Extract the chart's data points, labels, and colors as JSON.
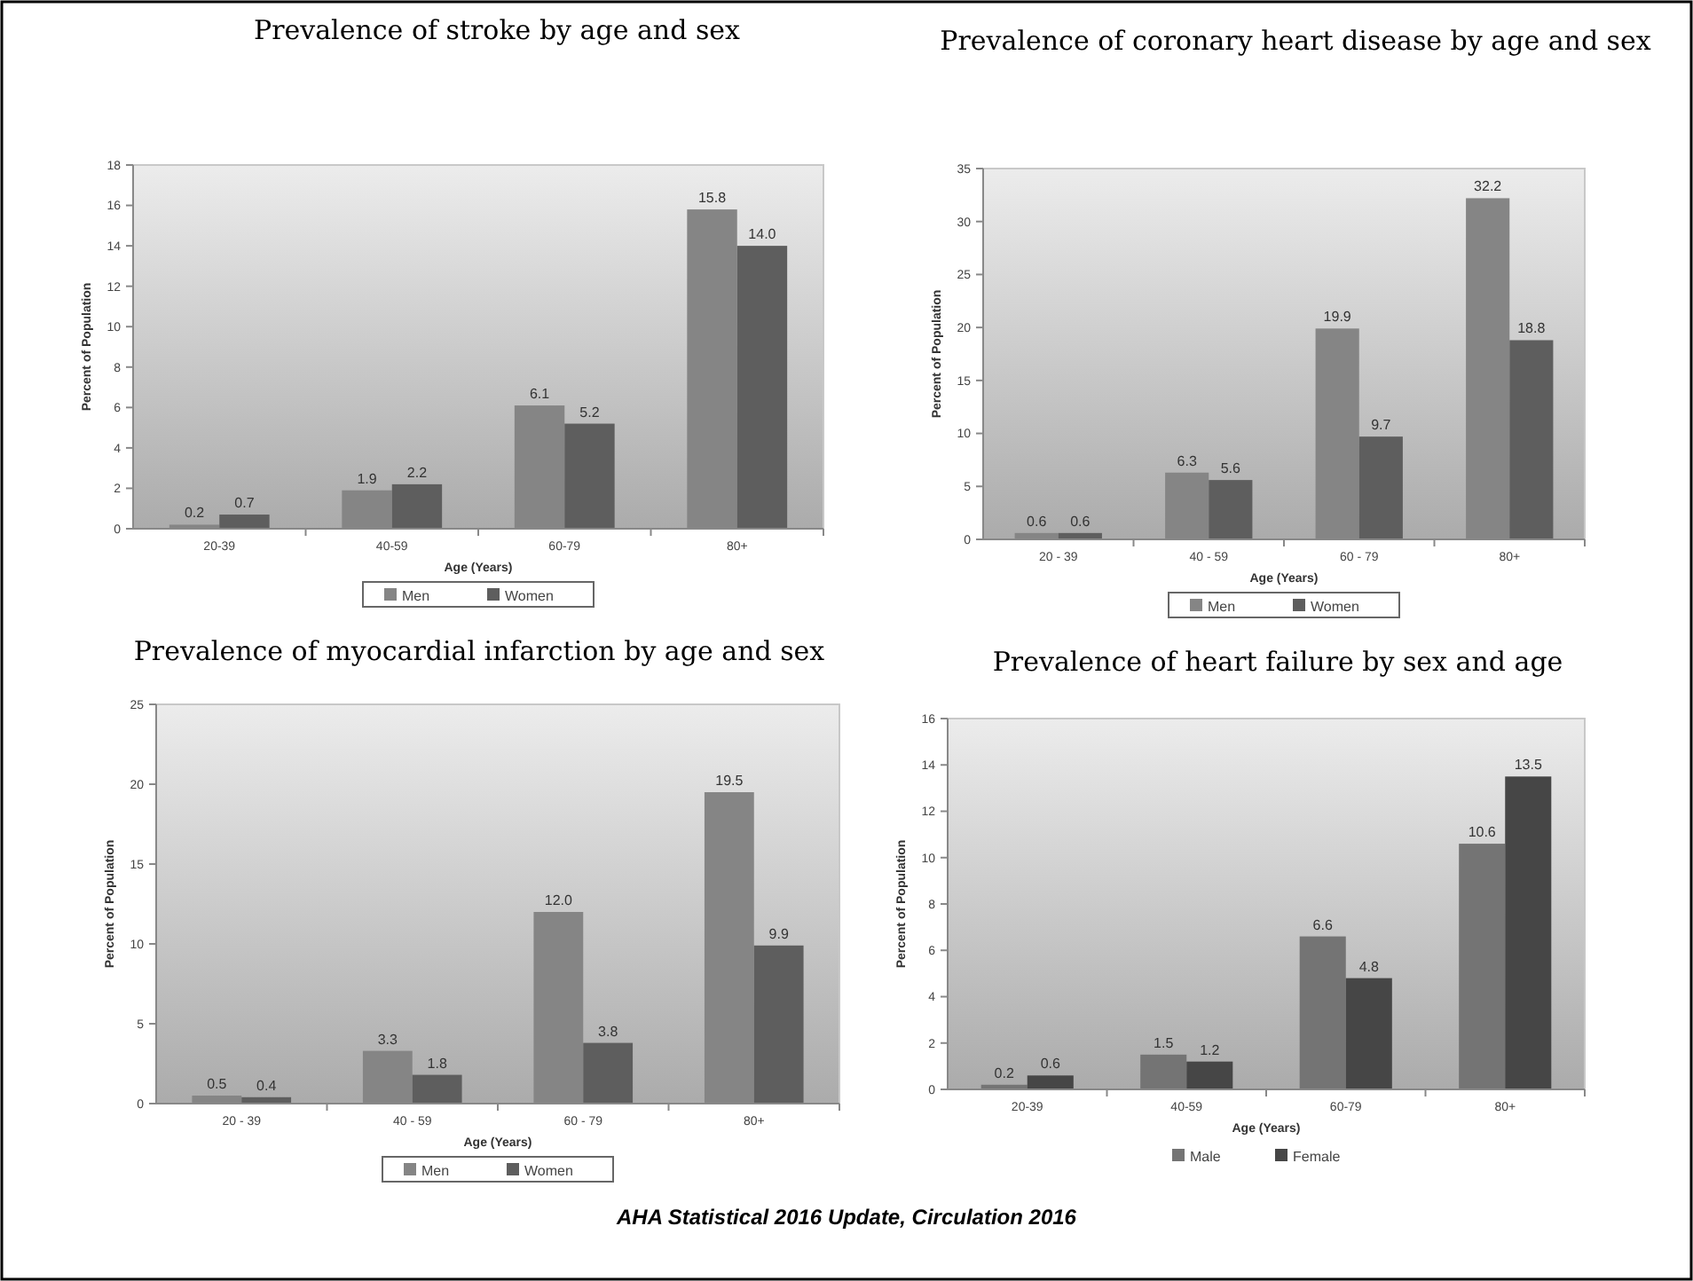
{
  "chart_data": [
    {
      "type": "bar",
      "title": "Prevalence of stroke by age and sex",
      "xlabel": "Age (Years)",
      "ylabel": "Percent of Population",
      "categories": [
        "20-39",
        "40-59",
        "60-79",
        "80+"
      ],
      "series": [
        {
          "name": "Men",
          "color": "#858585",
          "values": [
            0.2,
            1.9,
            6.1,
            15.8
          ],
          "value_labels": [
            "0.2",
            "1.9",
            "6.1",
            "15.8"
          ]
        },
        {
          "name": "Women",
          "color": "#5e5e5e",
          "values": [
            0.7,
            2.2,
            5.2,
            14.0
          ],
          "value_labels": [
            "0.7",
            "2.2",
            "5.2",
            "14.0"
          ]
        }
      ],
      "ylim": [
        0,
        18
      ],
      "yticks": [
        0,
        2,
        4,
        6,
        8,
        10,
        12,
        14,
        16,
        18
      ],
      "legend": "bottom"
    },
    {
      "type": "bar",
      "title": "Prevalence of coronary heart disease by age and sex",
      "xlabel": "Age (Years)",
      "ylabel": "Percent of Population",
      "categories": [
        "20 - 39",
        "40 - 59",
        "60 - 79",
        "80+"
      ],
      "series": [
        {
          "name": "Men",
          "color": "#858585",
          "values": [
            0.6,
            6.3,
            19.9,
            32.2
          ],
          "value_labels": [
            "0.6",
            "6.3",
            "19.9",
            "32.2"
          ]
        },
        {
          "name": "Women",
          "color": "#5e5e5e",
          "values": [
            0.6,
            5.6,
            9.7,
            18.8
          ],
          "value_labels": [
            "0.6",
            "5.6",
            "9.7",
            "18.8"
          ]
        }
      ],
      "ylim": [
        0,
        35
      ],
      "yticks": [
        0,
        5,
        10,
        15,
        20,
        25,
        30,
        35
      ],
      "legend": "bottom"
    },
    {
      "type": "bar",
      "title": "Prevalence of myocardial infarction by age and sex",
      "xlabel": "Age (Years)",
      "ylabel": "Percent of Population",
      "categories": [
        "20 - 39",
        "40 - 59",
        "60 - 79",
        "80+"
      ],
      "series": [
        {
          "name": "Men",
          "color": "#858585",
          "values": [
            0.5,
            3.3,
            12.0,
            19.5
          ],
          "value_labels": [
            "0.5",
            "3.3",
            "12.0",
            "19.5"
          ]
        },
        {
          "name": "Women",
          "color": "#5e5e5e",
          "values": [
            0.4,
            1.8,
            3.8,
            9.9
          ],
          "value_labels": [
            "0.4",
            "1.8",
            "3.8",
            "9.9"
          ]
        }
      ],
      "ylim": [
        0,
        25
      ],
      "yticks": [
        0,
        5,
        10,
        15,
        20,
        25
      ],
      "legend": "bottom"
    },
    {
      "type": "bar",
      "title": "Prevalence of heart failure by sex and age",
      "xlabel": "Age (Years)",
      "ylabel": "Percent of Population",
      "categories": [
        "20-39",
        "40-59",
        "60-79",
        "80+"
      ],
      "series": [
        {
          "name": "Male",
          "color": "#747474",
          "values": [
            0.2,
            1.5,
            6.6,
            10.6
          ],
          "value_labels": [
            "0.2",
            "1.5",
            "6.6",
            "10.6"
          ]
        },
        {
          "name": "Female",
          "color": "#464646",
          "values": [
            0.6,
            1.2,
            4.8,
            13.5
          ],
          "value_labels": [
            "0.6",
            "1.2",
            "4.8",
            "13.5"
          ]
        }
      ],
      "ylim": [
        0,
        16
      ],
      "yticks": [
        0,
        2,
        4,
        6,
        8,
        10,
        12,
        14,
        16
      ],
      "legend": "bottom",
      "annotations": [
        "AHA Statistical 2016 Update, Circulation 2016"
      ]
    }
  ]
}
